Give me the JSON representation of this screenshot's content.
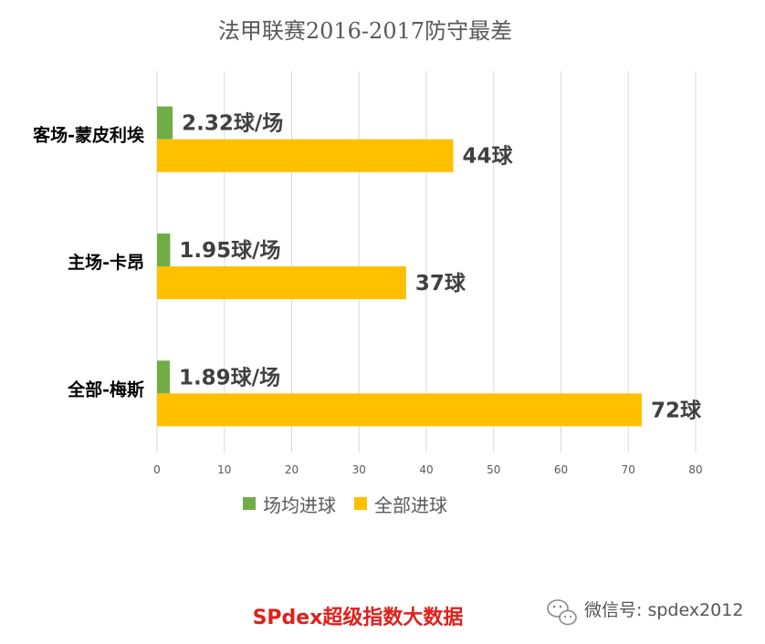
{
  "chart_data": {
    "type": "bar",
    "orientation": "horizontal",
    "title": "法甲联赛2016-2017防守最差",
    "categories": [
      "客场-蒙皮利埃",
      "主场-卡昂",
      "全部-梅斯"
    ],
    "series": [
      {
        "name": "场均进球",
        "color": "#70ad47",
        "values": [
          2.32,
          1.95,
          1.89
        ],
        "labels": [
          "2.32球/场",
          "1.95球/场",
          "1.89球/场"
        ]
      },
      {
        "name": "全部进球",
        "color": "#ffc000",
        "values": [
          44,
          37,
          72
        ],
        "labels": [
          "44球",
          "37球",
          "72球"
        ]
      }
    ],
    "xlim": [
      0,
      80
    ],
    "xticks": [
      0,
      10,
      20,
      30,
      40,
      50,
      60,
      70,
      80
    ],
    "grid": true,
    "legend_position": "bottom"
  },
  "footer": {
    "brand": "SPdex超级指数大数据",
    "brand_color": "#e0201b",
    "watermark": "微信号: spdex2012",
    "watermark_icon": "wechat-icon"
  }
}
